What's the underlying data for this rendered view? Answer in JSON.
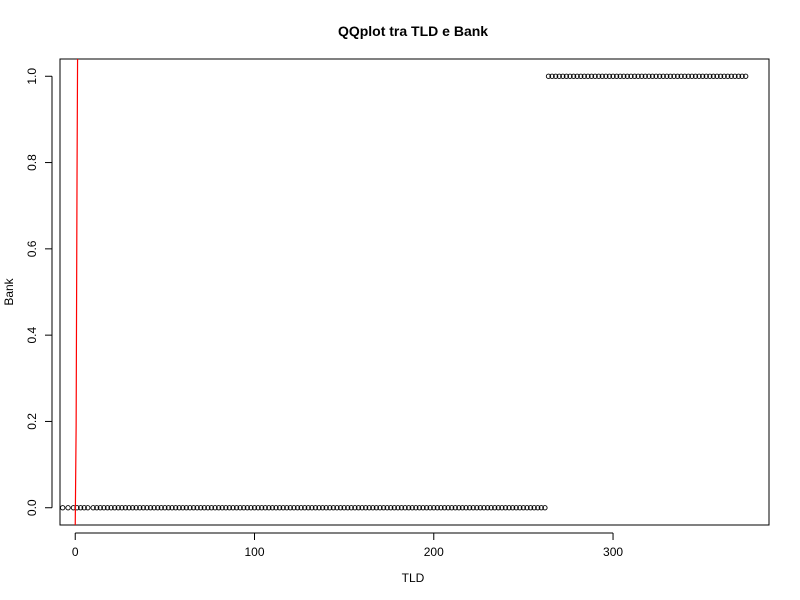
{
  "chart_data": {
    "type": "scatter",
    "title": "QQplot tra TLD e Bank",
    "xlabel": "TLD",
    "ylabel": "Bank",
    "xlim": [
      -8.5,
      387
    ],
    "ylim": [
      -0.04,
      1.04
    ],
    "x_ticks": [
      0,
      100,
      200,
      300
    ],
    "x_tick_labels": [
      "0",
      "100",
      "200",
      "300"
    ],
    "y_ticks": [
      0,
      0.2,
      0.4,
      0.6,
      0.8,
      1.0
    ],
    "y_tick_labels": [
      "0.0",
      "0.2",
      "0.4",
      "0.6",
      "0.8",
      "1.0"
    ],
    "grid": false,
    "point_style": "open-circle",
    "point_color": "#000000",
    "line_color": "#ff0000",
    "series": [
      {
        "points_y0": {
          "y": 0,
          "x": [
            -7,
            -4,
            -1,
            1,
            3,
            5,
            7,
            10,
            12,
            14,
            16,
            18,
            20,
            22,
            24,
            26,
            28,
            30,
            32,
            34,
            36,
            38,
            40,
            42,
            44,
            46,
            48,
            50,
            52,
            54,
            56,
            58,
            60,
            62,
            64,
            66,
            68,
            70,
            72,
            74,
            76,
            78,
            80,
            82,
            84,
            86,
            88,
            90,
            92,
            94,
            96,
            98,
            100,
            102,
            104,
            106,
            108,
            110,
            112,
            114,
            116,
            118,
            120,
            122,
            124,
            126,
            128,
            130,
            132,
            134,
            136,
            138,
            140,
            142,
            144,
            146,
            148,
            150,
            152,
            154,
            156,
            158,
            160,
            162,
            164,
            166,
            168,
            170,
            172,
            174,
            176,
            178,
            180,
            182,
            184,
            186,
            188,
            190,
            192,
            194,
            196,
            198,
            200,
            202,
            204,
            206,
            208,
            210,
            212,
            214,
            216,
            218,
            220,
            222,
            224,
            226,
            228,
            230,
            232,
            234,
            236,
            238,
            240,
            242,
            244,
            246,
            248,
            250,
            252,
            254,
            256,
            258,
            260,
            262
          ]
        },
        "points_y1": {
          "y": 1,
          "x": [
            264,
            266,
            268,
            270,
            272,
            274,
            276,
            278,
            280,
            282,
            284,
            286,
            288,
            290,
            292,
            294,
            296,
            298,
            300,
            302,
            304,
            306,
            308,
            310,
            312,
            314,
            316,
            318,
            320,
            322,
            324,
            326,
            328,
            330,
            332,
            334,
            336,
            338,
            340,
            342,
            344,
            346,
            348,
            350,
            352,
            354,
            356,
            358,
            360,
            362,
            364,
            366,
            368,
            370,
            372,
            374
          ]
        },
        "line": {
          "x": [
            0,
            0.5,
            1,
            1.3
          ],
          "y": [
            -0.04,
            0.19,
            0.77,
            1.04
          ]
        }
      }
    ]
  }
}
